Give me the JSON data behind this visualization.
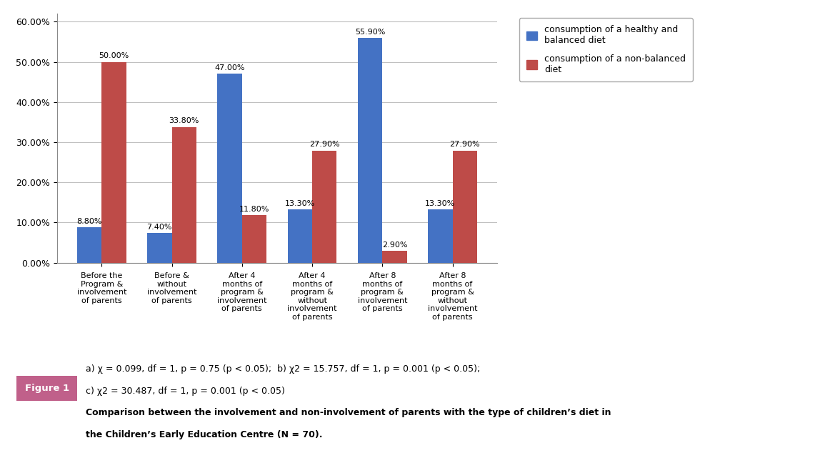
{
  "categories": [
    "Before the\nProgram &\ninvolvement\nof parents",
    "Before &\nwithout\ninvolvement\nof parents",
    "After 4\nmonths of\nprogram &\ninvolvement\nof parents",
    "After 4\nmonths of\nprogram &\nwithout\ninvolvement\nof parents",
    "After 8\nmonths of\nprogram &\ninvolvement\nof parents",
    "After 8\nmonths of\nprogram &\nwithout\ninvolvement\nof parents"
  ],
  "healthy": [
    8.8,
    7.4,
    47.0,
    13.3,
    55.9,
    13.3
  ],
  "nonbalanced": [
    50.0,
    33.8,
    11.8,
    27.9,
    2.9,
    27.9
  ],
  "healthy_labels": [
    "8.80%",
    "7.40%",
    "47.00%",
    "13.30%",
    "55.90%",
    "13.30%"
  ],
  "nonbalanced_labels": [
    "50.00%",
    "33.80%",
    "11.80%",
    "27.90%",
    "2.90%",
    "27.90%"
  ],
  "healthy_color": "#4472C4",
  "nonbalanced_color": "#BE4B48",
  "ylim": [
    0,
    62
  ],
  "yticks": [
    0,
    10,
    20,
    30,
    40,
    50,
    60
  ],
  "ytick_labels": [
    "0.00%",
    "10.00%",
    "20.00%",
    "30.00%",
    "40.00%",
    "50.00%",
    "60.00%"
  ],
  "legend_healthy": "consumption of a healthy and\nbalanced diet",
  "legend_nonbalanced": "consumption of a non-balanced\ndiet",
  "figure1_label": "Figure 1",
  "caption_line1": "a) χ = 0.099, df = 1, p = 0.75 (p < 0.05);  b) χ2 = 15.757, df = 1, p = 0.001 (p < 0.05);",
  "caption_line2": "c) χ2 = 30.487, df = 1, p = 0.001 (p < 0.05)",
  "caption_line3": "Comparison between the involvement and non-involvement of parents with the type of children’s diet in",
  "caption_line4": "the Children’s Early Education Centre (N = 70).",
  "bar_width": 0.35,
  "background_color": "#ffffff"
}
